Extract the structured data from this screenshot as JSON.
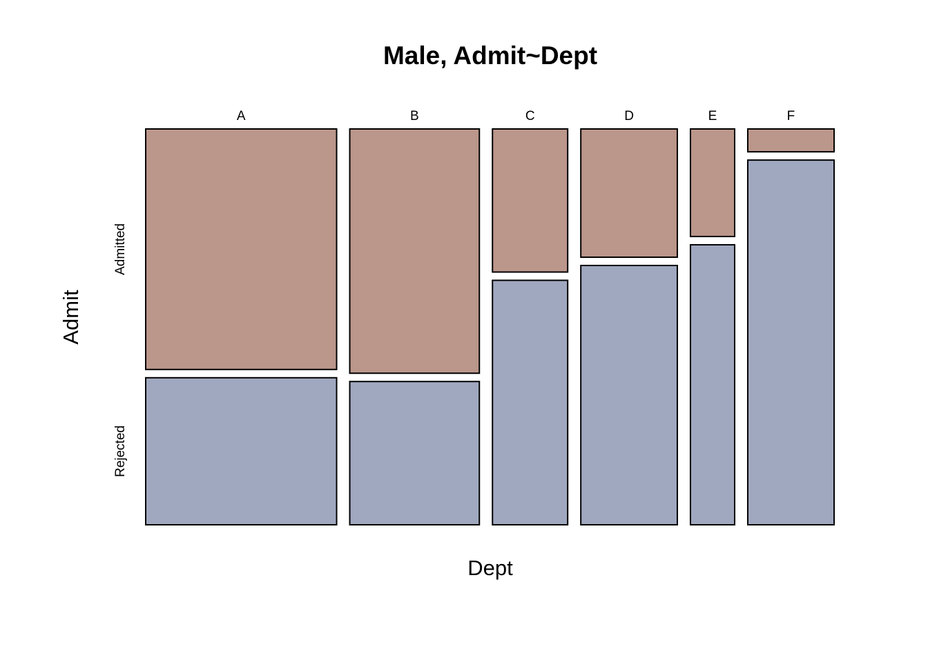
{
  "chart_data": {
    "type": "mosaic",
    "title": "Male, Admit~Dept",
    "xlabel": "Dept",
    "ylabel": "Admit",
    "categories": [
      "A",
      "B",
      "C",
      "D",
      "E",
      "F"
    ],
    "levels": [
      "Admitted",
      "Rejected"
    ],
    "colors": {
      "Admitted": "#bb968a",
      "Rejected": "#a0a8c0"
    },
    "counts": {
      "Admitted": [
        512,
        353,
        120,
        138,
        53,
        22
      ],
      "Rejected": [
        313,
        207,
        205,
        279,
        138,
        351
      ]
    }
  }
}
